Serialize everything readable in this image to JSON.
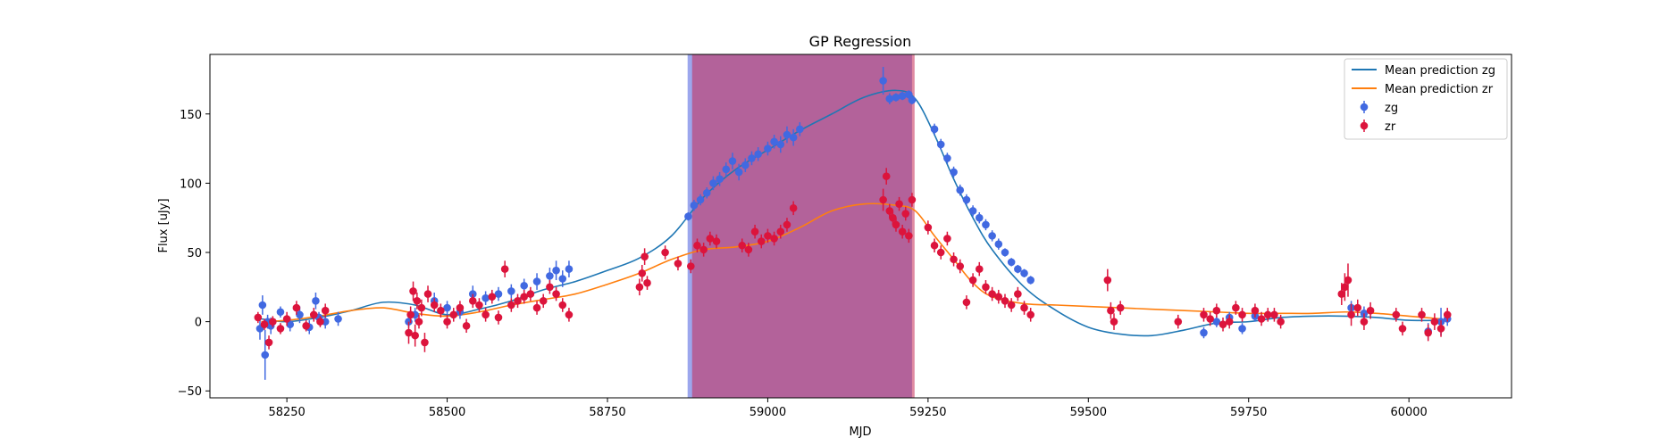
{
  "chart_data": {
    "type": "scatter",
    "title": "GP Regression",
    "xlabel": "MJD",
    "ylabel": "Flux [uJy]",
    "xlim": [
      58130,
      60160
    ],
    "ylim": [
      -55,
      193
    ],
    "xticks": [
      58250,
      58500,
      58750,
      59000,
      59250,
      59500,
      59750,
      60000
    ],
    "yticks": [
      -50,
      0,
      50,
      100,
      150
    ],
    "grid": false,
    "legend_position": "top-right",
    "shaded_regions": [
      {
        "x0": 58875,
        "x1": 59225,
        "color": "#4b5fdf",
        "opacity": 0.55
      },
      {
        "x0": 58882,
        "x1": 59229,
        "color": "#c62a55",
        "opacity": 0.55
      }
    ],
    "series": [
      {
        "name": "Mean prediction zg",
        "kind": "line",
        "color": "#1f77b4",
        "x": [
          58210,
          58250,
          58300,
          58350,
          58400,
          58450,
          58500,
          58550,
          58600,
          58650,
          58700,
          58750,
          58800,
          58850,
          58900,
          58950,
          59000,
          59050,
          59100,
          59150,
          59200,
          59230,
          59260,
          59290,
          59320,
          59350,
          59400,
          59450,
          59500,
          59550,
          59600,
          59650,
          59700,
          59750,
          59800,
          59850,
          59900,
          59950,
          60000,
          60050
        ],
        "y": [
          2,
          0,
          3,
          8,
          14,
          12,
          5,
          9,
          15,
          23,
          29,
          37,
          46,
          62,
          90,
          110,
          124,
          138,
          150,
          162,
          167,
          161,
          135,
          103,
          75,
          52,
          25,
          8,
          -4,
          -9,
          -10,
          -6,
          -1,
          0,
          3,
          4,
          4,
          3,
          1,
          1
        ]
      },
      {
        "name": "Mean prediction zr",
        "kind": "line",
        "color": "#ff7f0e",
        "x": [
          58210,
          58250,
          58300,
          58350,
          58400,
          58450,
          58500,
          58550,
          58600,
          58650,
          58700,
          58750,
          58800,
          58850,
          58900,
          58950,
          59000,
          59050,
          59100,
          59150,
          59200,
          59230,
          59260,
          59290,
          59320,
          59350,
          59400,
          59450,
          59500,
          59550,
          59600,
          59650,
          59700,
          59750,
          59800,
          59850,
          59900,
          59950,
          60000,
          60050
        ],
        "y": [
          0,
          1,
          4,
          8,
          10,
          6,
          4,
          7,
          12,
          16,
          20,
          27,
          35,
          45,
          52,
          54,
          58,
          68,
          80,
          85,
          84,
          80,
          62,
          45,
          28,
          18,
          13,
          12,
          11,
          10,
          9,
          8,
          7,
          6,
          6,
          6,
          7,
          6,
          4,
          2
        ]
      },
      {
        "name": "zg",
        "kind": "errorbar",
        "color": "#4169e1",
        "x": [
          58208,
          58212,
          58216,
          58220,
          58225,
          58240,
          58255,
          58270,
          58285,
          58295,
          58300,
          58310,
          58330,
          58440,
          58450,
          58480,
          58500,
          58520,
          58540,
          58560,
          58580,
          58600,
          58620,
          58640,
          58660,
          58670,
          58680,
          58690,
          58876,
          58885,
          58895,
          58905,
          58915,
          58925,
          58935,
          58945,
          58955,
          58965,
          58975,
          58985,
          59000,
          59010,
          59020,
          59030,
          59040,
          59050,
          59180,
          59190,
          59200,
          59210,
          59220,
          59225,
          59260,
          59270,
          59280,
          59290,
          59300,
          59310,
          59320,
          59330,
          59340,
          59350,
          59360,
          59370,
          59380,
          59390,
          59400,
          59410,
          59680,
          59700,
          59720,
          59740,
          59760,
          59910,
          59930,
          60030,
          60050,
          60060
        ],
        "y": [
          -5,
          12,
          -24,
          0,
          -3,
          7,
          -2,
          5,
          -4,
          15,
          3,
          0,
          2,
          0,
          5,
          15,
          10,
          7,
          20,
          17,
          20,
          22,
          26,
          29,
          33,
          37,
          31,
          38,
          76,
          84,
          88,
          93,
          100,
          103,
          110,
          116,
          108,
          113,
          118,
          121,
          125,
          130,
          128,
          135,
          133,
          139,
          174,
          161,
          162,
          163,
          164,
          160,
          139,
          128,
          118,
          108,
          95,
          88,
          80,
          75,
          70,
          62,
          56,
          50,
          43,
          38,
          35,
          30,
          -8,
          0,
          3,
          -5,
          4,
          10,
          6,
          -7,
          0,
          2
        ],
        "err": [
          8,
          7,
          18,
          5,
          6,
          4,
          5,
          6,
          5,
          6,
          4,
          5,
          5,
          4,
          5,
          6,
          5,
          5,
          6,
          5,
          5,
          5,
          5,
          6,
          6,
          7,
          6,
          6,
          3,
          4,
          4,
          4,
          5,
          5,
          5,
          6,
          6,
          5,
          5,
          5,
          5,
          5,
          6,
          6,
          6,
          5,
          10,
          4,
          3,
          3,
          3,
          3,
          4,
          4,
          4,
          4,
          4,
          4,
          4,
          4,
          4,
          4,
          4,
          3,
          3,
          3,
          3,
          3,
          4,
          4,
          4,
          4,
          4,
          5,
          5,
          6,
          10,
          5
        ]
      },
      {
        "name": "zr",
        "kind": "errorbar",
        "color": "#dc143c",
        "x": [
          58205,
          58215,
          58222,
          58228,
          58240,
          58250,
          58265,
          58280,
          58292,
          58302,
          58310,
          58440,
          58443,
          58447,
          58450,
          58453,
          58456,
          58460,
          58465,
          58470,
          58480,
          58490,
          58500,
          58510,
          58520,
          58530,
          58540,
          58550,
          58560,
          58570,
          58580,
          58590,
          58600,
          58610,
          58620,
          58630,
          58640,
          58650,
          58660,
          58670,
          58680,
          58690,
          58800,
          58804,
          58808,
          58812,
          58840,
          58860,
          58880,
          58890,
          58900,
          58910,
          58920,
          58960,
          58970,
          58980,
          58990,
          59000,
          59010,
          59020,
          59030,
          59040,
          59180,
          59185,
          59190,
          59195,
          59200,
          59205,
          59210,
          59215,
          59220,
          59225,
          59250,
          59260,
          59270,
          59280,
          59290,
          59300,
          59310,
          59320,
          59330,
          59340,
          59350,
          59360,
          59370,
          59380,
          59390,
          59400,
          59410,
          59530,
          59535,
          59540,
          59550,
          59640,
          59680,
          59690,
          59700,
          59710,
          59720,
          59730,
          59740,
          59760,
          59770,
          59780,
          59790,
          59800,
          59895,
          59900,
          59905,
          59910,
          59920,
          59930,
          59940,
          59980,
          59990,
          60020,
          60030,
          60040,
          60050,
          60060
        ],
        "y": [
          3,
          -2,
          -15,
          0,
          -5,
          2,
          10,
          -3,
          5,
          0,
          8,
          -8,
          5,
          22,
          -10,
          15,
          0,
          10,
          -15,
          20,
          12,
          8,
          0,
          5,
          10,
          -3,
          15,
          12,
          5,
          18,
          3,
          38,
          12,
          15,
          18,
          20,
          10,
          15,
          25,
          20,
          12,
          5,
          25,
          35,
          47,
          28,
          50,
          42,
          40,
          55,
          52,
          60,
          58,
          55,
          52,
          65,
          58,
          62,
          60,
          65,
          70,
          82,
          88,
          105,
          80,
          75,
          70,
          85,
          65,
          78,
          62,
          88,
          68,
          55,
          50,
          60,
          45,
          40,
          14,
          30,
          38,
          25,
          20,
          18,
          15,
          12,
          20,
          10,
          5,
          30,
          8,
          0,
          10,
          0,
          5,
          2,
          8,
          -2,
          0,
          10,
          5,
          8,
          2,
          5,
          5,
          0,
          20,
          25,
          30,
          5,
          10,
          0,
          8,
          5,
          -5,
          5,
          -8,
          0,
          -5,
          5
        ],
        "err": [
          4,
          4,
          5,
          4,
          4,
          5,
          5,
          4,
          5,
          4,
          5,
          8,
          6,
          7,
          8,
          6,
          5,
          6,
          7,
          6,
          5,
          5,
          5,
          5,
          5,
          5,
          5,
          5,
          5,
          5,
          5,
          6,
          5,
          5,
          5,
          5,
          5,
          5,
          5,
          5,
          5,
          5,
          6,
          6,
          6,
          5,
          5,
          5,
          5,
          5,
          5,
          5,
          5,
          5,
          5,
          5,
          5,
          5,
          5,
          5,
          5,
          5,
          8,
          6,
          5,
          5,
          5,
          5,
          5,
          5,
          5,
          5,
          5,
          5,
          5,
          5,
          5,
          5,
          5,
          5,
          5,
          5,
          5,
          5,
          5,
          5,
          5,
          5,
          5,
          8,
          6,
          6,
          5,
          5,
          5,
          5,
          5,
          5,
          5,
          5,
          5,
          5,
          5,
          5,
          5,
          5,
          8,
          10,
          12,
          8,
          6,
          6,
          6,
          5,
          5,
          5,
          6,
          6,
          6,
          5
        ]
      }
    ]
  }
}
